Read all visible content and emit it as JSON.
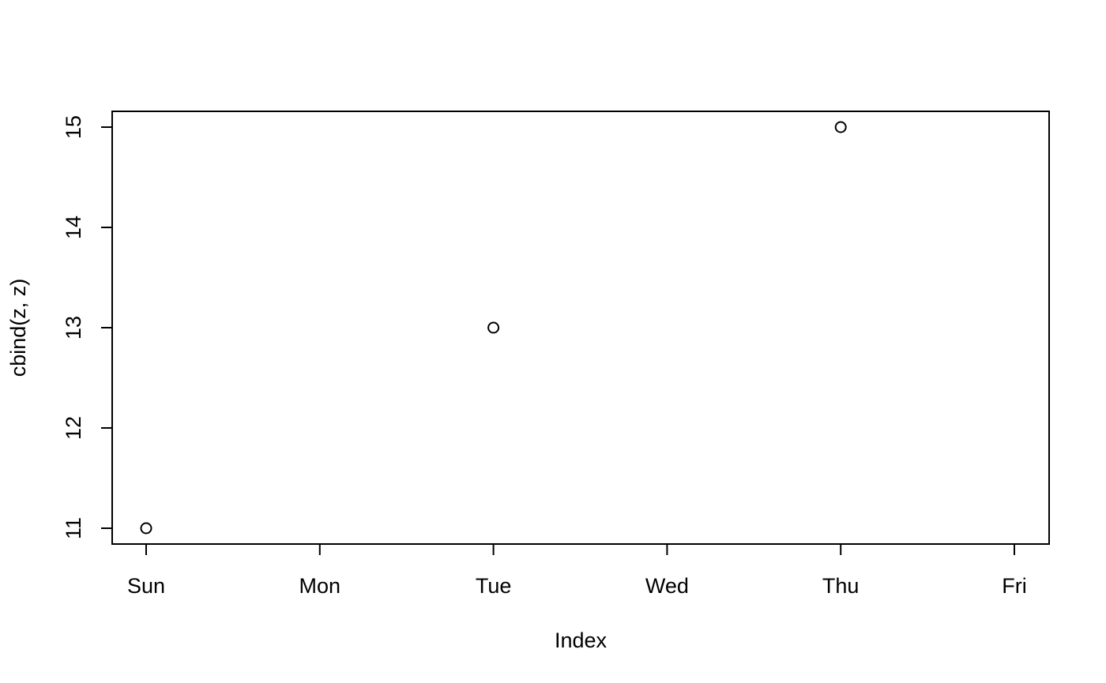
{
  "chart_data": {
    "type": "scatter",
    "title": "",
    "xlabel": "Index",
    "ylabel": "cbind(z, z)",
    "x_ticks": [
      "Sun",
      "Mon",
      "Tue",
      "Wed",
      "Thu",
      "Fri"
    ],
    "y_ticks": [
      "11",
      "12",
      "13",
      "14",
      "15"
    ],
    "xlim": [
      "Sun",
      "Fri"
    ],
    "ylim": [
      11,
      15
    ],
    "points": [
      {
        "x": "Sun",
        "y": 11
      },
      {
        "x": "Tue",
        "y": 13
      },
      {
        "x": "Thu",
        "y": 15
      }
    ],
    "marker": "open-circle",
    "grid": false,
    "colors": {
      "stroke": "#000000",
      "background": "#ffffff"
    }
  }
}
